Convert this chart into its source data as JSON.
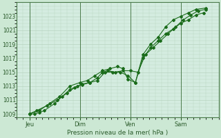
{
  "xlabel": "Pression niveau de la mer( hPa )",
  "bg_color": "#cce8d4",
  "plot_bg_color": "#d4ece0",
  "grid_color": "#b8d4c0",
  "line_color": "#1a6b1a",
  "tick_label_color": "#2a5a2a",
  "ylim": [
    1008.5,
    1025.0
  ],
  "yticks": [
    1009,
    1011,
    1013,
    1015,
    1017,
    1019,
    1021,
    1023
  ],
  "day_labels": [
    "Jeu",
    "Dim",
    "Ven",
    "Sam"
  ],
  "day_positions": [
    0.5,
    2.5,
    4.5,
    6.5
  ],
  "vline_positions": [
    0.5,
    2.5,
    4.5,
    6.5
  ],
  "xlim": [
    0.0,
    8.0
  ],
  "series1_x": [
    0.5,
    0.7,
    0.9,
    1.1,
    1.5,
    1.8,
    2.1,
    2.4,
    2.6,
    2.9,
    3.2,
    3.4,
    3.6,
    3.9,
    4.2,
    4.5,
    4.8,
    5.1,
    5.4,
    5.7,
    6.0,
    6.3,
    6.6,
    6.9,
    7.2,
    7.5
  ],
  "series1_y": [
    1009,
    1009,
    1009.2,
    1009.5,
    1010.5,
    1011.5,
    1012.5,
    1013.0,
    1013.2,
    1013.5,
    1014.2,
    1015.0,
    1015.2,
    1015.0,
    1015.2,
    1015.2,
    1015.0,
    1017.5,
    1018.5,
    1019.5,
    1020.5,
    1021.5,
    1022.5,
    1023.2,
    1023.8,
    1024.0
  ],
  "series2_x": [
    0.5,
    0.8,
    1.2,
    1.6,
    2.0,
    2.3,
    2.6,
    2.9,
    3.2,
    3.5,
    3.8,
    4.1,
    4.4,
    4.7,
    5.0,
    5.3,
    5.6,
    5.9,
    6.2,
    6.5,
    6.8,
    7.1,
    7.4
  ],
  "series2_y": [
    1009,
    1009.5,
    1010.2,
    1011.0,
    1012.0,
    1012.8,
    1013.3,
    1013.5,
    1013.8,
    1015.0,
    1015.0,
    1015.0,
    1014.5,
    1013.5,
    1017.0,
    1018.5,
    1019.5,
    1020.5,
    1021.2,
    1022.0,
    1022.5,
    1023.2,
    1023.5
  ],
  "series3_x": [
    0.5,
    0.9,
    1.3,
    1.7,
    2.1,
    2.5,
    2.8,
    3.1,
    3.4,
    3.7,
    4.0,
    4.2,
    4.4,
    4.7,
    5.0,
    5.3,
    5.6,
    5.9,
    6.2,
    6.5,
    6.8,
    7.1,
    7.5
  ],
  "series3_y": [
    1009,
    1009.5,
    1010.5,
    1011.5,
    1013.0,
    1013.5,
    1013.8,
    1014.5,
    1015.2,
    1015.5,
    1015.8,
    1015.5,
    1014.0,
    1013.5,
    1017.5,
    1019.0,
    1020.0,
    1021.5,
    1022.5,
    1023.0,
    1023.5,
    1024.0,
    1024.2
  ]
}
